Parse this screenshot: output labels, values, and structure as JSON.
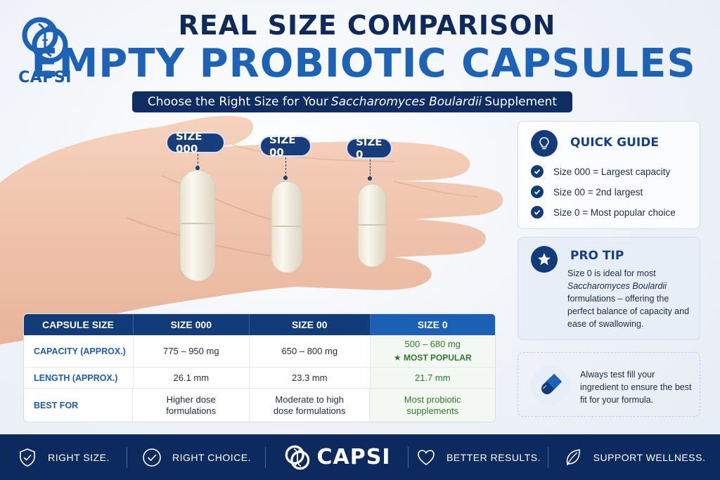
{
  "brand": {
    "name": "CAPSI",
    "primary_color": "#1c63b8",
    "navy_color": "#0f2d63",
    "accent_green": "#2f7a2a"
  },
  "header": {
    "title_line1": "REAL SIZE COMPARISON",
    "title_line2": "EMPTY PROBIOTIC CAPSULES",
    "subtitle_before": "Choose the Right Size for Your",
    "subtitle_italic": "Saccharomyces Boulardii",
    "subtitle_after": "Supplement"
  },
  "capsule_labels": [
    "SIZE 000",
    "SIZE 00",
    "SIZE 0"
  ],
  "quick_guide": {
    "icon": "lightbulb-icon",
    "title": "QUICK GUIDE",
    "items": [
      "Size 000 = Largest capacity",
      "Size 00 = 2nd largest",
      "Size 0 = Most popular choice"
    ]
  },
  "pro_tip": {
    "icon": "star-icon",
    "title": "PRO TIP",
    "body_line1": "Size 0 is ideal for most",
    "body_italic": "Saccharomyces Boulardii",
    "body_rest": "formulations – offering the perfect balance of capacity and ease of swallowing."
  },
  "note": {
    "icon": "capsule-icon",
    "text": "Always test fill your ingredient to ensure the best fit for your formula."
  },
  "table": {
    "headers": [
      "CAPSULE SIZE",
      "SIZE 000",
      "SIZE 00",
      "SIZE 0"
    ],
    "rows": [
      {
        "label": "CAPACITY (APPROX.)",
        "values": [
          "775 – 950 mg",
          "650 – 800 mg",
          "500 – 680 mg"
        ],
        "badge": "MOST POPULAR"
      },
      {
        "label": "LENGTH (APPROX.)",
        "values": [
          "26.1 mm",
          "23.3 mm",
          "21.7 mm"
        ]
      },
      {
        "label": "BEST FOR",
        "values": [
          "Higher dose formulations",
          "Moderate to high dose formulations",
          "Most probiotic supplements"
        ]
      }
    ]
  },
  "footer": {
    "items": [
      "RIGHT SIZE.",
      "RIGHT CHOICE.",
      "BETTER RESULTS.",
      "SUPPORT WELLNESS."
    ],
    "logo": "CAPSI"
  }
}
